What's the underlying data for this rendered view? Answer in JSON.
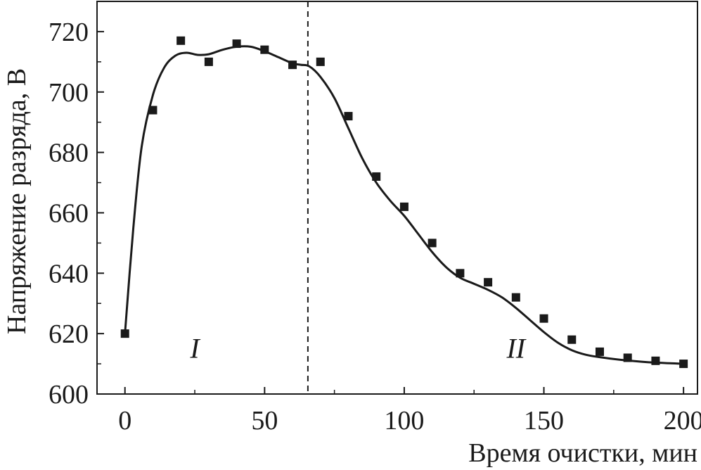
{
  "chart_data": {
    "type": "scatter",
    "xlabel": "Время очистки, мин",
    "ylabel": "Напряжение разряда, В",
    "xlim": [
      -10,
      205
    ],
    "ylim": [
      600,
      730
    ],
    "xticks": [
      0,
      50,
      100,
      150,
      200
    ],
    "yticks": [
      600,
      620,
      640,
      660,
      680,
      700,
      720
    ],
    "grid": false,
    "series": [
      {
        "marker": "square",
        "line": "smooth-spline",
        "color": "#1a1a1a",
        "x": [
          0,
          10,
          20,
          30,
          40,
          50,
          60,
          70,
          80,
          90,
          100,
          110,
          120,
          130,
          140,
          150,
          160,
          170,
          180,
          190,
          200
        ],
        "y": [
          620,
          694,
          717,
          710,
          716,
          714,
          709,
          710,
          692,
          672,
          662,
          650,
          640,
          637,
          632,
          625,
          618,
          614,
          612,
          611,
          610
        ]
      }
    ],
    "curve": {
      "x": [
        0,
        3,
        6,
        10,
        14,
        18,
        22,
        26,
        30,
        35,
        40,
        45,
        50,
        55,
        60,
        63,
        66,
        70,
        75,
        80,
        85,
        90,
        95,
        100,
        105,
        110,
        115,
        120,
        125,
        130,
        135,
        140,
        145,
        150,
        155,
        160,
        165,
        170,
        175,
        180,
        185,
        190,
        195,
        200
      ],
      "y": [
        620,
        655,
        682,
        699,
        708,
        712,
        713,
        712.3,
        712.5,
        714,
        715,
        715,
        713.5,
        711.5,
        709.5,
        709,
        708.5,
        705,
        698,
        688,
        678,
        670,
        664,
        659,
        653,
        647,
        642,
        638.5,
        636.5,
        634.5,
        632,
        628.5,
        624.5,
        620.5,
        617,
        614.5,
        613,
        612.2,
        611.6,
        611.1,
        610.7,
        610.4,
        610.2,
        610
      ]
    },
    "divider_x": 65.5,
    "annotations": [
      {
        "text": "I",
        "x": 25,
        "y": 612
      },
      {
        "text": "II",
        "x": 140,
        "y": 612
      }
    ]
  }
}
